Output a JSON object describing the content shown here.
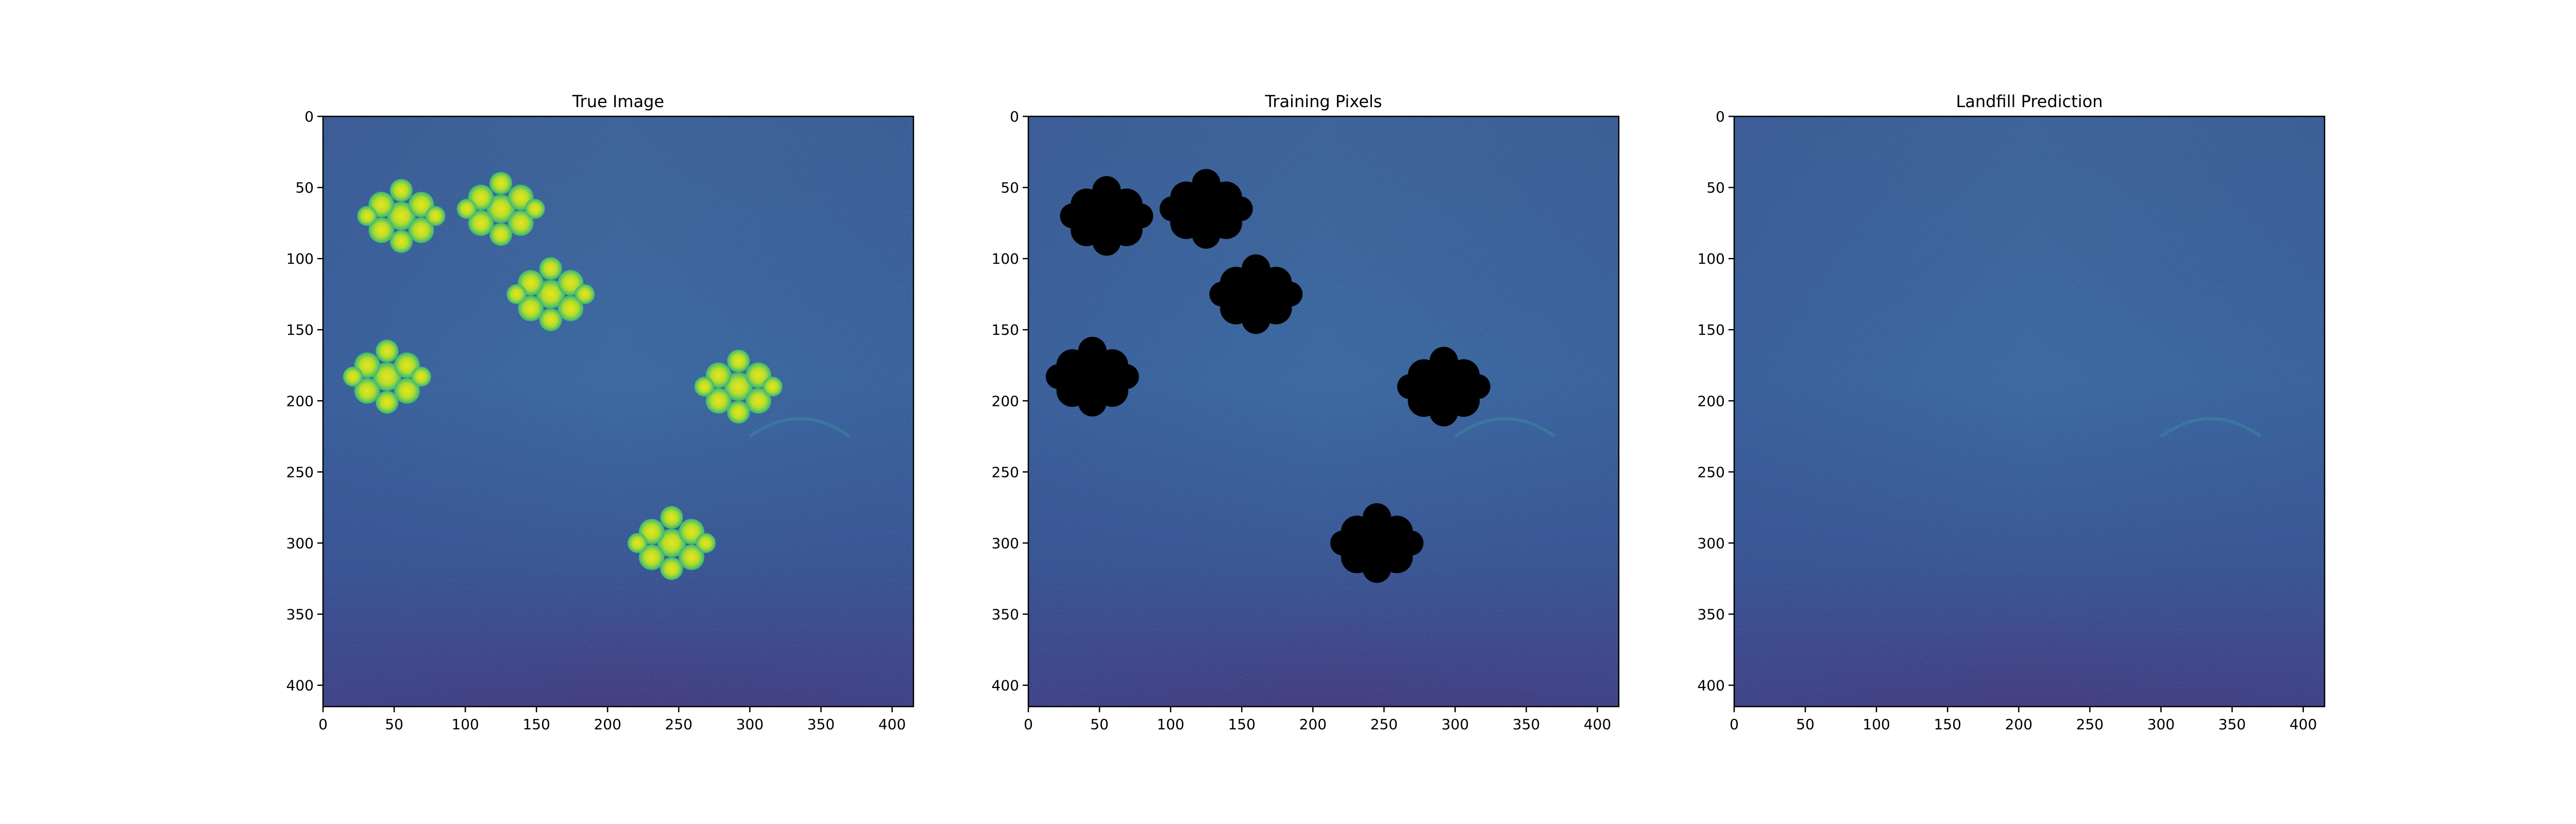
{
  "chart_data": [
    {
      "type": "heatmap",
      "title": "True Image",
      "xlabel": "",
      "ylabel": "",
      "xlim": [
        0,
        415
      ],
      "ylim": [
        415,
        0
      ],
      "xticks": [
        "0",
        "50",
        "100",
        "150",
        "200",
        "250",
        "300",
        "350",
        "400"
      ],
      "yticks": [
        "0",
        "50",
        "100",
        "150",
        "200",
        "250",
        "300",
        "350",
        "400"
      ],
      "colormap": "viridis",
      "features": {
        "kind": "bright landfill clusters",
        "clusters": [
          {
            "x": 55,
            "y": 70
          },
          {
            "x": 160,
            "y": 125
          },
          {
            "x": 45,
            "y": 183
          },
          {
            "x": 292,
            "y": 190
          },
          {
            "x": 245,
            "y": 300
          },
          {
            "x": 125,
            "y": 65
          }
        ]
      },
      "grid": false,
      "legend": "none"
    },
    {
      "type": "heatmap",
      "title": "Training Pixels",
      "xlabel": "",
      "ylabel": "",
      "xlim": [
        0,
        415
      ],
      "ylim": [
        415,
        0
      ],
      "xticks": [
        "0",
        "50",
        "100",
        "150",
        "200",
        "250",
        "300",
        "350",
        "400"
      ],
      "yticks": [
        "0",
        "50",
        "100",
        "150",
        "200",
        "250",
        "300",
        "350",
        "400"
      ],
      "colormap": "viridis",
      "features": {
        "kind": "masked training regions (black)",
        "clusters": [
          {
            "x": 55,
            "y": 70
          },
          {
            "x": 160,
            "y": 125
          },
          {
            "x": 45,
            "y": 183
          },
          {
            "x": 292,
            "y": 190
          },
          {
            "x": 245,
            "y": 300
          },
          {
            "x": 125,
            "y": 65
          }
        ]
      },
      "grid": false,
      "legend": "none"
    },
    {
      "type": "heatmap",
      "title": "Landfill Prediction",
      "xlabel": "",
      "ylabel": "",
      "xlim": [
        0,
        415
      ],
      "ylim": [
        415,
        0
      ],
      "xticks": [
        "0",
        "50",
        "100",
        "150",
        "200",
        "250",
        "300",
        "350",
        "400"
      ],
      "yticks": [
        "0",
        "50",
        "100",
        "150",
        "200",
        "250",
        "300",
        "350",
        "400"
      ],
      "colormap": "viridis",
      "features": {
        "kind": "uniform background, no detections",
        "clusters": []
      },
      "grid": false,
      "legend": "none"
    }
  ],
  "colors": {
    "background_low": "#2d3d86",
    "background_mid": "#33619a",
    "background_dark": "#3b1f6e",
    "blob_edge": "#3fbc73",
    "blob_center": "#e8e419",
    "mask": "#000000"
  }
}
